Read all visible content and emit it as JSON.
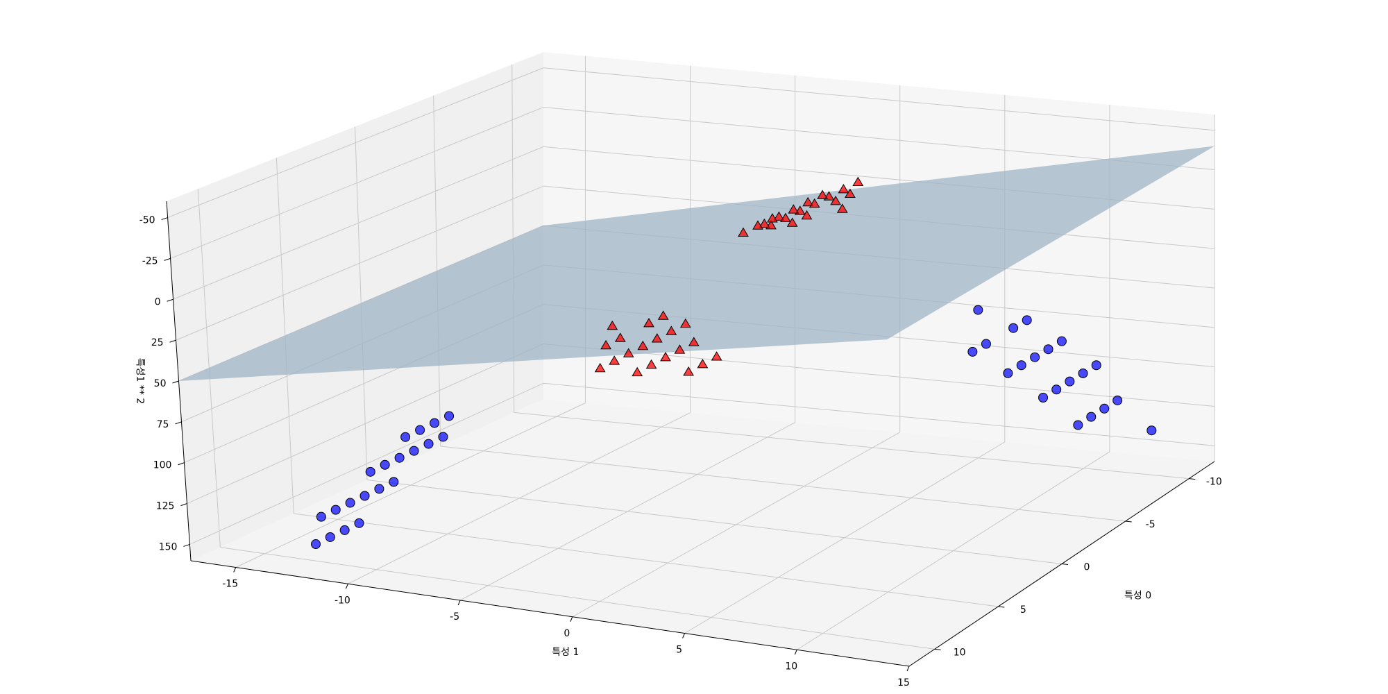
{
  "chart_data": {
    "type": "scatter3d",
    "title": "",
    "axes": {
      "x": {
        "label": "특성 0",
        "ticks": [
          -10,
          -5,
          0,
          5,
          10
        ]
      },
      "y": {
        "label": "특성 1",
        "ticks": [
          -15,
          -10,
          -5,
          0,
          5,
          10,
          15
        ]
      },
      "z": {
        "label": "특성1 ** 2",
        "ticks": [
          -50,
          -25,
          0,
          25,
          50,
          75,
          100,
          125,
          150
        ]
      }
    },
    "grid": true,
    "colors": {
      "class0": "#0000ff",
      "class1": "#ff0000",
      "plane": "#9fb4c6",
      "pane": "#f2f2f2",
      "grid": "#c8c8c8"
    },
    "decision_plane": {
      "corners_xyz": [
        [
          -12,
          -17,
          50
        ],
        [
          12,
          -17,
          50
        ],
        [
          12,
          15,
          -40
        ],
        [
          -12,
          15,
          -40
        ]
      ]
    },
    "series": [
      {
        "marker": "circle",
        "points": [
          [
            8,
            -10,
            100
          ],
          [
            9,
            -11,
            121
          ],
          [
            7,
            -9,
            81
          ],
          [
            10,
            -12,
            144
          ],
          [
            8,
            -9,
            81
          ],
          [
            9,
            -10,
            100
          ],
          [
            7,
            -10,
            100
          ],
          [
            11,
            -12,
            144
          ],
          [
            6,
            -9,
            81
          ],
          [
            8,
            -11,
            121
          ],
          [
            10,
            -11,
            121
          ],
          [
            9,
            -12,
            144
          ],
          [
            7,
            -11,
            121
          ],
          [
            11,
            -11,
            121
          ],
          [
            8,
            -12,
            144
          ],
          [
            6,
            -10,
            100
          ],
          [
            10,
            -10,
            100
          ],
          [
            12,
            -11,
            121
          ],
          [
            5,
            -10,
            100
          ],
          [
            9,
            -9,
            81
          ],
          [
            -8,
            8,
            64
          ],
          [
            -9,
            9,
            81
          ],
          [
            -7,
            7,
            49
          ],
          [
            -10,
            10,
            100
          ],
          [
            -8,
            9,
            81
          ],
          [
            -9,
            10,
            100
          ],
          [
            -7,
            9,
            81
          ],
          [
            -11,
            11,
            121
          ],
          [
            -8,
            10,
            100
          ],
          [
            -10,
            9,
            81
          ],
          [
            -9,
            8,
            64
          ],
          [
            -6,
            8,
            64
          ],
          [
            -7,
            10,
            100
          ],
          [
            -10,
            11,
            121
          ],
          [
            -8,
            11,
            121
          ],
          [
            -9,
            11,
            121
          ],
          [
            -11,
            10,
            100
          ],
          [
            -6,
            9,
            81
          ],
          [
            -12,
            12,
            144
          ],
          [
            -5,
            8,
            64
          ]
        ]
      },
      {
        "marker": "triangle",
        "points": [
          [
            8,
            2,
            4
          ],
          [
            9,
            3,
            9
          ],
          [
            7,
            1,
            1
          ],
          [
            10,
            2,
            4
          ],
          [
            8,
            3,
            9
          ],
          [
            9,
            1,
            1
          ],
          [
            7,
            2,
            4
          ],
          [
            10,
            3,
            9
          ],
          [
            8,
            0,
            0
          ],
          [
            11,
            2,
            4
          ],
          [
            6,
            2,
            4
          ],
          [
            9,
            4,
            16
          ],
          [
            7,
            3,
            9
          ],
          [
            10,
            1,
            1
          ],
          [
            8,
            4,
            16
          ],
          [
            11,
            3,
            9
          ],
          [
            6,
            1,
            1
          ],
          [
            9,
            2,
            4
          ],
          [
            12,
            2,
            4
          ],
          [
            7,
            4,
            16
          ],
          [
            -8,
            -2,
            4
          ],
          [
            -9,
            -3,
            9
          ],
          [
            -7,
            -1,
            1
          ],
          [
            -10,
            -2,
            4
          ],
          [
            -8,
            -3,
            9
          ],
          [
            -9,
            -1,
            1
          ],
          [
            -7,
            -2,
            4
          ],
          [
            -10,
            -3,
            9
          ],
          [
            -8,
            0,
            0
          ],
          [
            -11,
            -2,
            4
          ],
          [
            -6,
            -2,
            4
          ],
          [
            -9,
            -4,
            16
          ],
          [
            -7,
            -3,
            9
          ],
          [
            -10,
            -1,
            1
          ],
          [
            -8,
            -4,
            16
          ],
          [
            -11,
            -3,
            9
          ],
          [
            -6,
            -1,
            1
          ],
          [
            -9,
            -2,
            4
          ],
          [
            -12,
            -2,
            4
          ],
          [
            -7,
            -4,
            16
          ]
        ]
      }
    ]
  }
}
